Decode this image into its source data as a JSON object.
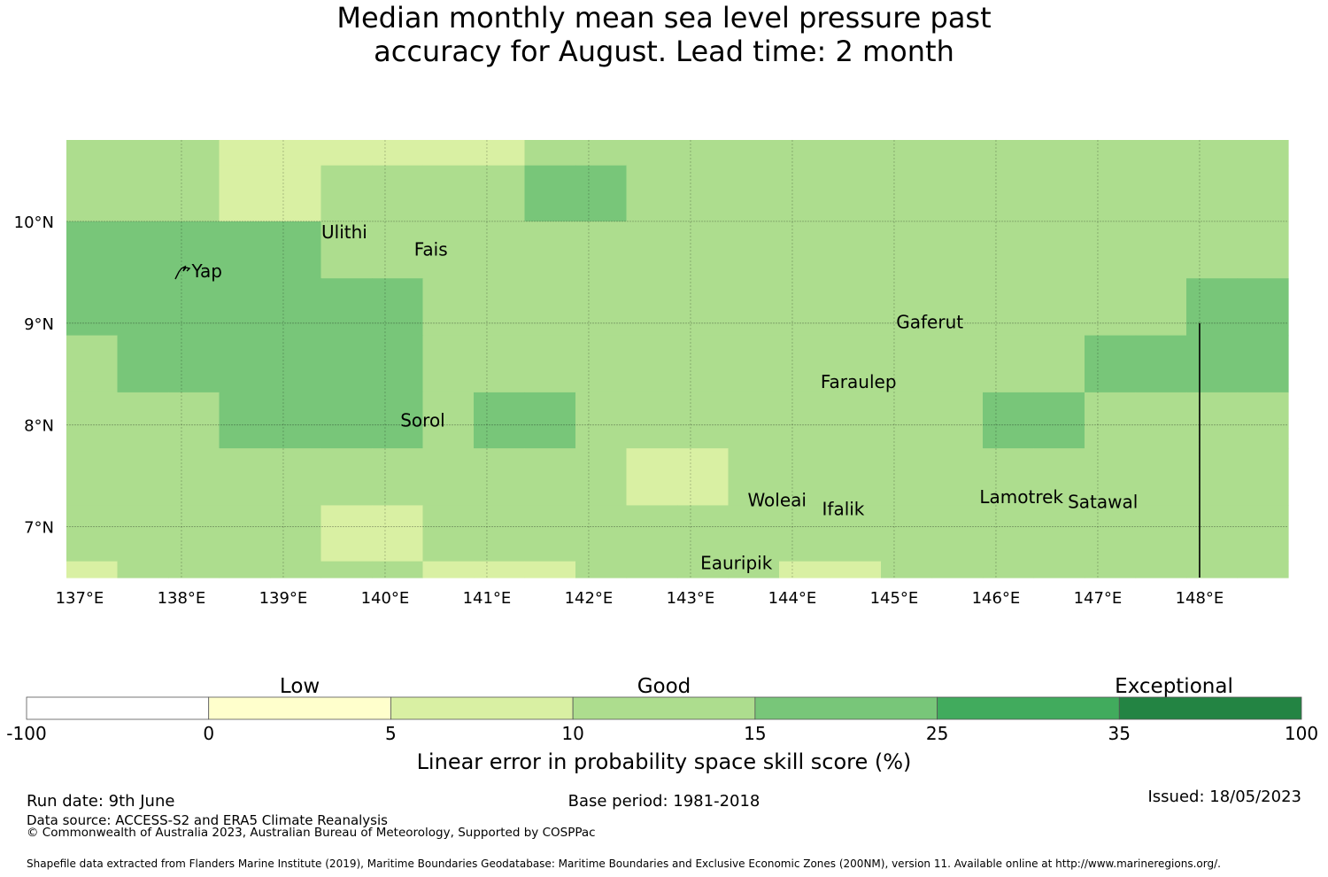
{
  "title": {
    "line1": "Median monthly mean sea level pressure past",
    "line2": "accuracy for August. Lead time: 2 month"
  },
  "map": {
    "x_ticks": [
      "137°E",
      "138°E",
      "139°E",
      "140°E",
      "141°E",
      "142°E",
      "143°E",
      "144°E",
      "145°E",
      "146°E",
      "147°E",
      "148°E"
    ],
    "y_ticks": [
      "10°N",
      "9°N",
      "8°N",
      "7°N"
    ],
    "places": [
      {
        "name": "Yap",
        "lon": 138.25,
        "lat": 9.5
      },
      {
        "name": "Ulithi",
        "lon": 139.6,
        "lat": 9.88
      },
      {
        "name": "Fais",
        "lon": 140.45,
        "lat": 9.71
      },
      {
        "name": "Gaferut",
        "lon": 145.35,
        "lat": 9.0
      },
      {
        "name": "Faraulep",
        "lon": 144.65,
        "lat": 8.41
      },
      {
        "name": "Sorol",
        "lon": 140.37,
        "lat": 8.03
      },
      {
        "name": "Woleai",
        "lon": 143.85,
        "lat": 7.25
      },
      {
        "name": "Ifalik",
        "lon": 144.5,
        "lat": 7.16
      },
      {
        "name": "Lamotrek",
        "lon": 146.25,
        "lat": 7.28
      },
      {
        "name": "Satawal",
        "lon": 147.05,
        "lat": 7.23
      },
      {
        "name": "Eauripik",
        "lon": 143.45,
        "lat": 6.63
      }
    ],
    "palette": {
      "c1": "#d9f0a3",
      "c2": "#addd8e",
      "c3": "#78c679"
    },
    "grid_rows": [
      {
        "lat_top": 10.8,
        "lat_bottom": 10.55,
        "cells": [
          "c2",
          "c2",
          "c2",
          "c1",
          "c1",
          "c1",
          "c1",
          "c1",
          "c1",
          "c2",
          "c2",
          "c2",
          "c2",
          "c2",
          "c2",
          "c2",
          "c2",
          "c2",
          "c2",
          "c2",
          "c2",
          "c2",
          "c2",
          "c2"
        ]
      },
      {
        "lat_top": 10.55,
        "lat_bottom": 10.0,
        "cells": [
          "c2",
          "c2",
          "c2",
          "c1",
          "c1",
          "c2",
          "c2",
          "c2",
          "c2",
          "c3",
          "c3",
          "c2",
          "c2",
          "c2",
          "c2",
          "c2",
          "c2",
          "c2",
          "c2",
          "c2",
          "c2",
          "c2",
          "c2",
          "c2"
        ]
      },
      {
        "lat_top": 10.0,
        "lat_bottom": 9.44,
        "cells": [
          "c3",
          "c3",
          "c3",
          "c3",
          "c3",
          "c2",
          "c2",
          "c2",
          "c2",
          "c2",
          "c2",
          "c2",
          "c2",
          "c2",
          "c2",
          "c2",
          "c2",
          "c2",
          "c2",
          "c2",
          "c2",
          "c2",
          "c2",
          "c2"
        ]
      },
      {
        "lat_top": 9.44,
        "lat_bottom": 8.88,
        "cells": [
          "c3",
          "c3",
          "c3",
          "c3",
          "c3",
          "c3",
          "c3",
          "c2",
          "c2",
          "c2",
          "c2",
          "c2",
          "c2",
          "c2",
          "c2",
          "c2",
          "c2",
          "c2",
          "c2",
          "c2",
          "c2",
          "c2",
          "c3",
          "c3"
        ]
      },
      {
        "lat_top": 8.88,
        "lat_bottom": 8.32,
        "cells": [
          "c2",
          "c3",
          "c3",
          "c3",
          "c3",
          "c3",
          "c3",
          "c2",
          "c2",
          "c2",
          "c2",
          "c2",
          "c2",
          "c2",
          "c2",
          "c2",
          "c2",
          "c2",
          "c2",
          "c2",
          "c3",
          "c3",
          "c3",
          "c3"
        ]
      },
      {
        "lat_top": 8.32,
        "lat_bottom": 7.77,
        "cells": [
          "c2",
          "c2",
          "c2",
          "c3",
          "c3",
          "c3",
          "c3",
          "c2",
          "c3",
          "c3",
          "c2",
          "c2",
          "c2",
          "c2",
          "c2",
          "c2",
          "c2",
          "c2",
          "c3",
          "c3",
          "c2",
          "c2",
          "c2",
          "c2"
        ]
      },
      {
        "lat_top": 7.77,
        "lat_bottom": 7.21,
        "cells": [
          "c2",
          "c2",
          "c2",
          "c2",
          "c2",
          "c2",
          "c2",
          "c2",
          "c2",
          "c2",
          "c2",
          "c1",
          "c1",
          "c2",
          "c2",
          "c2",
          "c2",
          "c2",
          "c2",
          "c2",
          "c2",
          "c2",
          "c2",
          "c2"
        ]
      },
      {
        "lat_top": 7.21,
        "lat_bottom": 6.66,
        "cells": [
          "c2",
          "c2",
          "c2",
          "c2",
          "c2",
          "c1",
          "c1",
          "c2",
          "c2",
          "c2",
          "c2",
          "c2",
          "c2",
          "c2",
          "c2",
          "c2",
          "c2",
          "c2",
          "c2",
          "c2",
          "c2",
          "c2",
          "c2",
          "c2"
        ]
      },
      {
        "lat_top": 6.66,
        "lat_bottom": 6.5,
        "cells": [
          "c1",
          "c2",
          "c2",
          "c2",
          "c2",
          "c2",
          "c2",
          "c1",
          "c1",
          "c1",
          "c2",
          "c2",
          "c2",
          "c2",
          "c1",
          "c1",
          "c2",
          "c2",
          "c2",
          "c2",
          "c2",
          "c2",
          "c2",
          "c2"
        ]
      }
    ]
  },
  "colorbar": {
    "categories": [
      "Low",
      "Good",
      "Exceptional"
    ],
    "tick_labels": [
      "-100",
      "0",
      "5",
      "10",
      "15",
      "25",
      "35",
      "100"
    ],
    "colors": [
      "#ffffff",
      "#ffffcc",
      "#d9f0a3",
      "#addd8e",
      "#78c679",
      "#41ab5d",
      "#238443"
    ],
    "label": "Linear error in probability space skill score (%)"
  },
  "footer": {
    "run_date": "Run date: 9th June",
    "data_source": "Data source: ACCESS-S2 and ERA5 Climate Reanalysis",
    "copyright": "© Commonwealth of Australia 2023, Australian Bureau of Meteorology, Supported by COSPPac",
    "base_period": "Base period: 1981-2018",
    "issued": "Issued: 18/05/2023",
    "shapefile": "Shapefile data extracted from Flanders Marine Institute (2019), Maritime Boundaries Geodatabase: Maritime Boundaries and Exclusive Economic Zones (200NM), version 11. Available online at http://www.marineregions.org/."
  }
}
